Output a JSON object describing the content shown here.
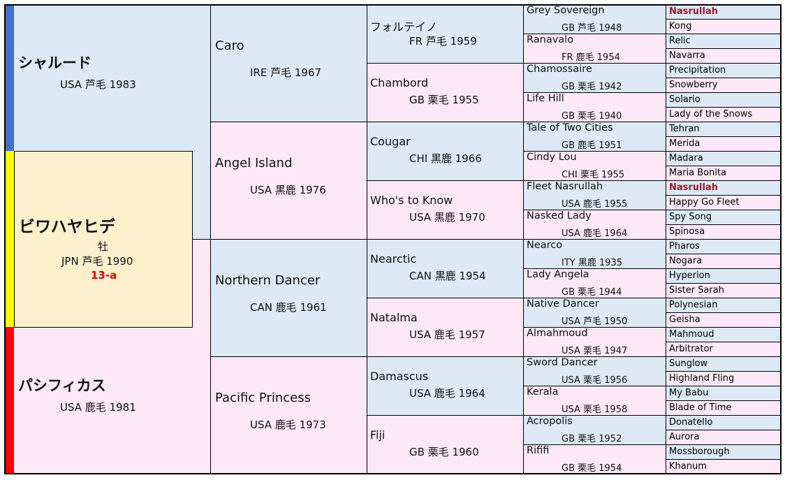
{
  "subject": {
    "name": "ビワハヤヒデ",
    "sex": "牡",
    "info": "JPN 芦毛 1990",
    "family": "13-a"
  },
  "sire": {
    "name": "シャルード",
    "info": "USA 芦毛 1983"
  },
  "dam": {
    "name": "パシフィカス",
    "info": "USA 鹿毛 1981"
  },
  "gen2": [
    {
      "name": "Caro",
      "info": "IRE 芦毛 1967"
    },
    {
      "name": "Angel Island",
      "info": "USA 黒鹿 1976"
    },
    {
      "name": "Northern Dancer",
      "info": "CAN 鹿毛 1961"
    },
    {
      "name": "Pacific Princess",
      "info": "USA 鹿毛 1973"
    }
  ],
  "gen3": [
    {
      "name": "フォルテイノ",
      "info": "FR 芦毛 1959"
    },
    {
      "name": "Chambord",
      "info": "GB 栗毛 1955"
    },
    {
      "name": "Cougar",
      "info": "CHI 黒鹿 1966"
    },
    {
      "name": "Who's to Know",
      "info": "USA 黒鹿 1970"
    },
    {
      "name": "Nearctic",
      "info": "CAN 黒鹿 1954"
    },
    {
      "name": "Natalma",
      "info": "USA 鹿毛 1957"
    },
    {
      "name": "Damascus",
      "info": "USA 鹿毛 1964"
    },
    {
      "name": "Fiji",
      "info": "GB 栗毛 1960"
    }
  ],
  "gen4": [
    {
      "name": "Grey Sovereign",
      "info": "GB 芦毛 1948"
    },
    {
      "name": "Ranavalo",
      "info": "FR 鹿毛 1954"
    },
    {
      "name": "Chamossaire",
      "info": "GB 栗毛 1942"
    },
    {
      "name": "Life Hill",
      "info": "GB 栗毛 1940"
    },
    {
      "name": "Tale of Two Cities",
      "info": "GB 鹿毛 1951"
    },
    {
      "name": "Cindy Lou",
      "info": "CHI 栗毛 1955"
    },
    {
      "name": "Fleet Nasrullah",
      "info": "USA 鹿毛 1955"
    },
    {
      "name": "Nasked Lady",
      "info": "USA 鹿毛 1964"
    },
    {
      "name": "Nearco",
      "info": "ITY 黒鹿 1935"
    },
    {
      "name": "Lady Angela",
      "info": "GB 栗毛 1944"
    },
    {
      "name": "Native Dancer",
      "info": "USA 芦毛 1950"
    },
    {
      "name": "Almahmoud",
      "info": "USA 栗毛 1947"
    },
    {
      "name": "Sword Dancer",
      "info": "USA 栗毛 1956"
    },
    {
      "name": "Kerala",
      "info": "USA 栗毛 1958"
    },
    {
      "name": "Acropolis",
      "info": "GB 栗毛 1952"
    },
    {
      "name": "Rififi",
      "info": "GB 栗毛 1954"
    }
  ],
  "gen5": [
    {
      "name": "Nasrullah",
      "highlight": true
    },
    {
      "name": "Kong",
      "highlight": false
    },
    {
      "name": "Relic",
      "highlight": false
    },
    {
      "name": "Navarra",
      "highlight": false
    },
    {
      "name": "Precipitation",
      "highlight": false
    },
    {
      "name": "Snowberry",
      "highlight": false
    },
    {
      "name": "Solario",
      "highlight": false
    },
    {
      "name": "Lady of the Snows",
      "highlight": false
    },
    {
      "name": "Tehran",
      "highlight": false
    },
    {
      "name": "Merida",
      "highlight": false
    },
    {
      "name": "Madara",
      "highlight": false
    },
    {
      "name": "Maria Bonita",
      "highlight": false
    },
    {
      "name": "Nasrullah",
      "highlight": true
    },
    {
      "name": "Happy Go Fleet",
      "highlight": false
    },
    {
      "name": "Spy Song",
      "highlight": false
    },
    {
      "name": "Spinosa",
      "highlight": false
    },
    {
      "name": "Pharos",
      "highlight": false
    },
    {
      "name": "Nogara",
      "highlight": false
    },
    {
      "name": "Hyperion",
      "highlight": false
    },
    {
      "name": "Sister Sarah",
      "highlight": false
    },
    {
      "name": "Polynesian",
      "highlight": false
    },
    {
      "name": "Geisha",
      "highlight": false
    },
    {
      "name": "Mahmoud",
      "highlight": false
    },
    {
      "name": "Arbitrator",
      "highlight": false
    },
    {
      "name": "Sunglow",
      "highlight": false
    },
    {
      "name": "Highland Fling",
      "highlight": false
    },
    {
      "name": "My Babu",
      "highlight": false
    },
    {
      "name": "Blade of Time",
      "highlight": false
    },
    {
      "name": "Donatello",
      "highlight": false
    },
    {
      "name": "Aurora",
      "highlight": false
    },
    {
      "name": "Mossborough",
      "highlight": false
    },
    {
      "name": "Khanum",
      "highlight": false
    }
  ],
  "colors": {
    "sire_bar": "#4472c4",
    "subject_bar": "#ffff00",
    "dam_bar": "#ff0000",
    "male_bg": "#dde9f5",
    "female_bg": "#fde9f6",
    "subject_bg": "#fdf0cc",
    "family": "#d10000",
    "highlight": "#a0162e"
  }
}
